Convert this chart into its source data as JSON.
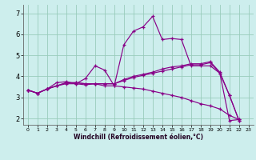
{
  "xlabel": "Windchill (Refroidissement éolien,°C)",
  "bg_color": "#cdeeed",
  "line_color": "#880088",
  "grid_color": "#99ccbb",
  "xlim": [
    -0.5,
    23.5
  ],
  "ylim": [
    1.7,
    7.4
  ],
  "xticks": [
    0,
    1,
    2,
    3,
    4,
    5,
    6,
    7,
    8,
    9,
    10,
    11,
    12,
    13,
    14,
    15,
    16,
    17,
    18,
    19,
    20,
    21,
    22,
    23
  ],
  "yticks": [
    2,
    3,
    4,
    5,
    6,
    7
  ],
  "lines": [
    {
      "x": [
        0,
        1,
        2,
        3,
        4,
        5,
        6,
        7,
        8,
        9,
        10,
        11,
        12,
        13,
        14,
        15,
        16,
        17,
        18,
        19,
        20,
        21,
        22,
        23
      ],
      "y": [
        3.35,
        3.2,
        3.4,
        3.7,
        3.75,
        3.65,
        3.9,
        4.5,
        4.3,
        3.55,
        5.5,
        6.15,
        6.35,
        6.85,
        5.75,
        5.8,
        5.75,
        4.5,
        4.5,
        4.5,
        4.15,
        1.9,
        1.95,
        null
      ]
    },
    {
      "x": [
        0,
        1,
        2,
        3,
        4,
        5,
        6,
        7,
        8,
        9,
        10,
        11,
        12,
        13,
        14,
        15,
        16,
        17,
        18,
        19,
        20,
        21,
        22,
        23
      ],
      "y": [
        3.35,
        3.2,
        3.4,
        3.55,
        3.65,
        3.65,
        3.6,
        3.65,
        3.55,
        3.55,
        3.5,
        3.45,
        3.4,
        3.3,
        3.2,
        3.1,
        3.0,
        2.85,
        2.7,
        2.6,
        2.45,
        2.15,
        1.95,
        null
      ]
    },
    {
      "x": [
        0,
        1,
        2,
        3,
        4,
        5,
        6,
        7,
        8,
        9,
        10,
        11,
        12,
        13,
        14,
        15,
        16,
        17,
        18,
        19,
        20,
        21,
        22,
        23
      ],
      "y": [
        3.35,
        3.2,
        3.4,
        3.55,
        3.7,
        3.7,
        3.65,
        3.65,
        3.65,
        3.65,
        3.8,
        3.95,
        4.05,
        4.15,
        4.25,
        4.35,
        4.45,
        4.55,
        4.55,
        4.65,
        4.15,
        3.1,
        1.9,
        null
      ]
    },
    {
      "x": [
        0,
        1,
        2,
        3,
        4,
        5,
        6,
        7,
        8,
        9,
        10,
        11,
        12,
        13,
        14,
        15,
        16,
        17,
        18,
        19,
        20,
        21,
        22,
        23
      ],
      "y": [
        3.35,
        3.2,
        3.4,
        3.55,
        3.7,
        3.7,
        3.65,
        3.65,
        3.65,
        3.65,
        3.85,
        4.0,
        4.1,
        4.2,
        4.35,
        4.45,
        4.5,
        4.6,
        4.6,
        4.7,
        4.2,
        3.1,
        1.9,
        null
      ]
    }
  ],
  "xlabel_fontsize": 5.5,
  "tick_fontsize_x": 4.5,
  "tick_fontsize_y": 6.0
}
